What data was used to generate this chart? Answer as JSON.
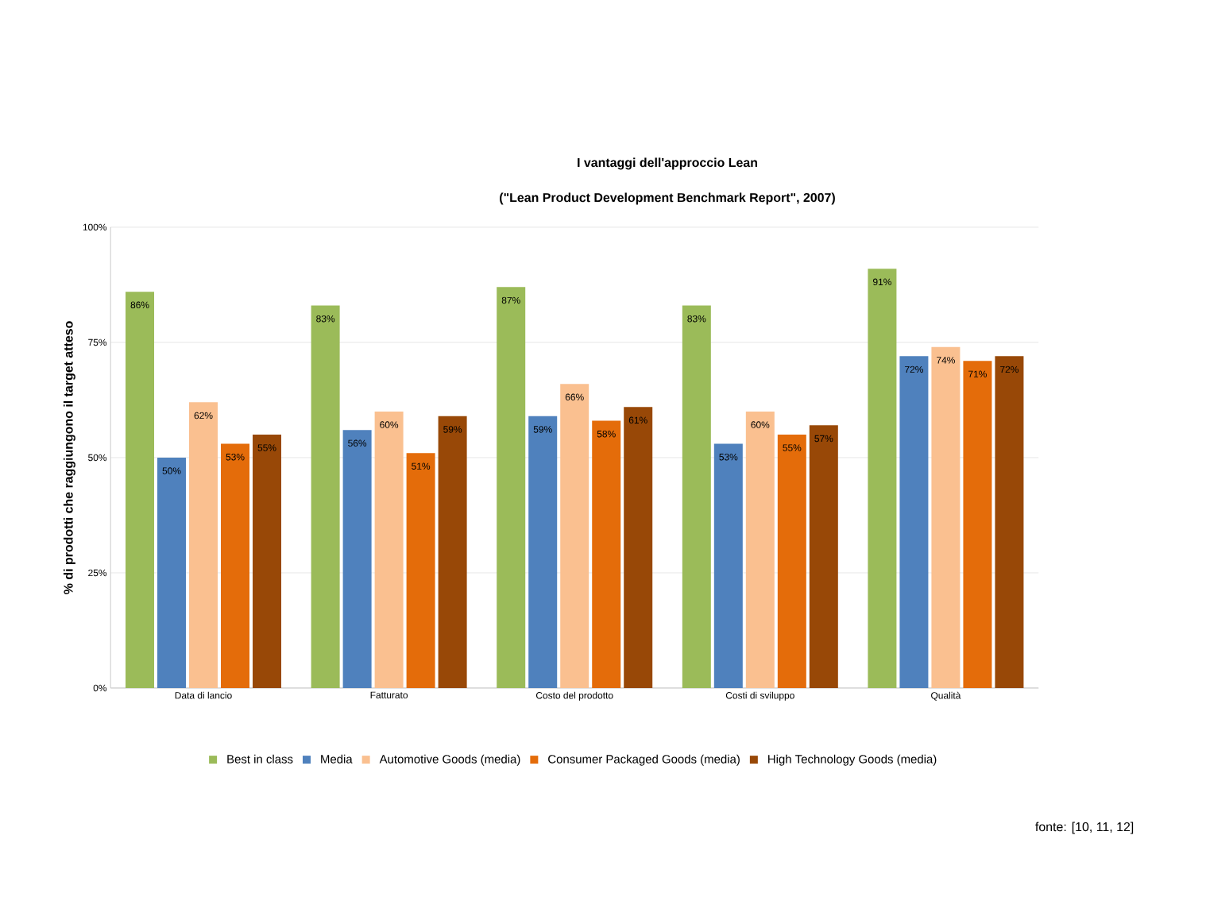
{
  "chart_data": {
    "type": "bar",
    "title": "I vantaggi dell'approccio Lean",
    "subtitle": "(\"Lean Product Development Benchmark Report\", 2007)",
    "ylabel": "% di prodotti che raggiungono il target atteso",
    "categories": [
      "Data di lancio",
      "Fatturato",
      "Costo del prodotto",
      "Costi di sviluppo",
      "Qualità"
    ],
    "series": [
      {
        "name": "Best in class",
        "color": "#9bbb59",
        "values": [
          86,
          83,
          87,
          83,
          91
        ],
        "value_labels": [
          "86%",
          "83%",
          "87%",
          "83%",
          "91%"
        ]
      },
      {
        "name": "Media",
        "color": "#4f81bd",
        "values": [
          50,
          56,
          59,
          53,
          72
        ],
        "value_labels": [
          "50%",
          "56%",
          "59%",
          "53%",
          "72%"
        ]
      },
      {
        "name": "Automotive Goods (media)",
        "color": "#fac090",
        "values": [
          62,
          60,
          66,
          60,
          74
        ],
        "value_labels": [
          "62%",
          "60%",
          "66%",
          "60%",
          "74%"
        ]
      },
      {
        "name": "Consumer Packaged Goods (media)",
        "color": "#e46c0a",
        "values": [
          53,
          51,
          58,
          55,
          71
        ],
        "value_labels": [
          "53%",
          "51%",
          "58%",
          "55%",
          "71%"
        ]
      },
      {
        "name": "High Technology Goods (media)",
        "color": "#984807",
        "values": [
          55,
          59,
          61,
          57,
          72
        ],
        "value_labels": [
          "55%",
          "59%",
          "61%",
          "57%",
          "72%"
        ]
      }
    ],
    "ylim": [
      0,
      100
    ],
    "yticks": [
      {
        "value": 0,
        "label": "0%"
      },
      {
        "value": 25,
        "label": "25%"
      },
      {
        "value": 50,
        "label": "50%"
      },
      {
        "value": 75,
        "label": "75%"
      },
      {
        "value": 100,
        "label": "100%"
      }
    ],
    "grid": "y",
    "legend": "bottom",
    "annotations": [
      "fonte: [10, 11, 12]"
    ]
  }
}
